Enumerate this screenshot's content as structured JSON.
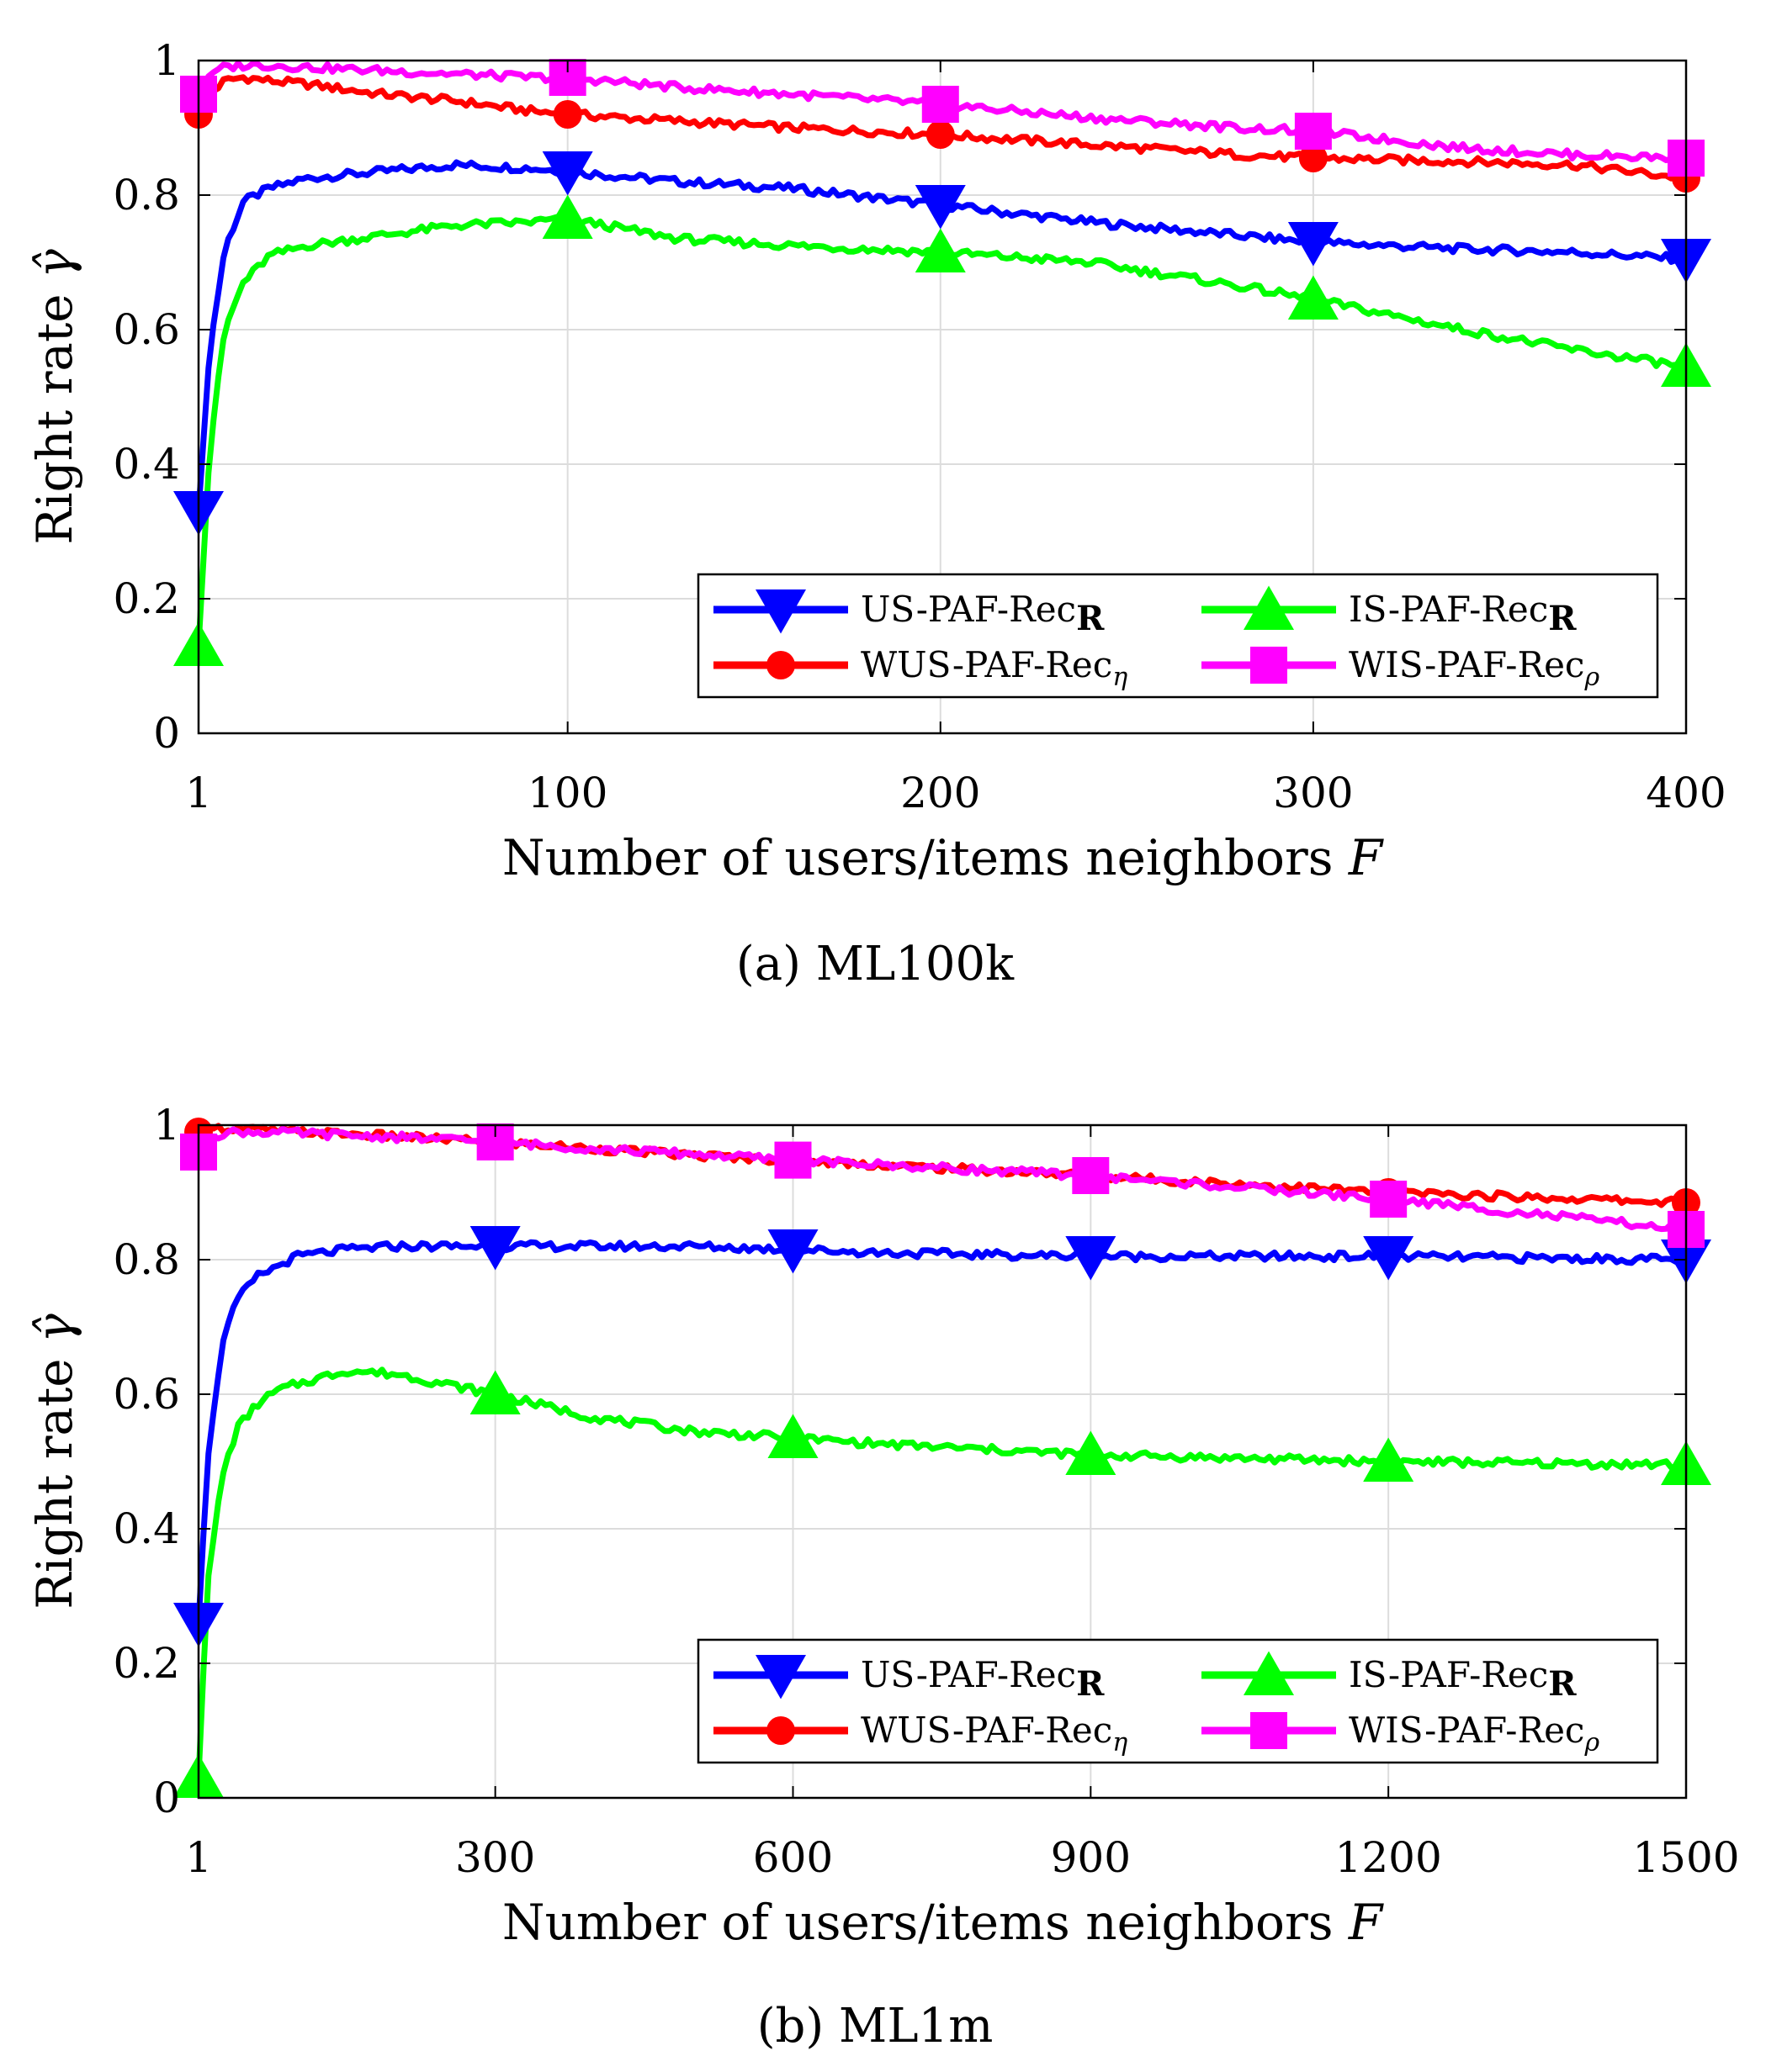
{
  "chart_data": [
    {
      "type": "line",
      "caption": "(a)  ML100k",
      "xlabel": "Number of users/items neighbors",
      "xlabel_var": "F",
      "ylabel": "Right rate",
      "ylabel_var": "γ̂",
      "xlim": [
        1,
        400
      ],
      "ylim": [
        0,
        1
      ],
      "xticks": [
        1,
        100,
        200,
        300,
        400
      ],
      "xtick_labels": [
        "1",
        "100",
        "200",
        "300",
        "400"
      ],
      "yticks": [
        0,
        0.2,
        0.4,
        0.6,
        0.8,
        1
      ],
      "ytick_labels": [
        "0",
        "0.2",
        "0.4",
        "0.6",
        "0.8",
        "1"
      ],
      "grid": true,
      "legend_position": "bottom-right",
      "markers_at": [
        1,
        100,
        200,
        300,
        400
      ],
      "series": [
        {
          "name": "US-PAF-Rec",
          "sub": "R",
          "sub_style": "bold",
          "color": "#0000ff",
          "marker": "triangle-down",
          "x": [
            1,
            4,
            8,
            13,
            20,
            30,
            50,
            70,
            90,
            100,
            130,
            160,
            200,
            240,
            280,
            300,
            340,
            370,
            400
          ],
          "y": [
            0.33,
            0.57,
            0.72,
            0.79,
            0.81,
            0.825,
            0.835,
            0.845,
            0.84,
            0.835,
            0.82,
            0.81,
            0.785,
            0.76,
            0.74,
            0.73,
            0.72,
            0.715,
            0.705
          ]
        },
        {
          "name": "WUS-PAF-Rec",
          "sub": "η",
          "sub_style": "italic",
          "color": "#ff0000",
          "marker": "circle",
          "x": [
            1,
            4,
            8,
            13,
            20,
            30,
            50,
            70,
            90,
            100,
            130,
            160,
            200,
            240,
            280,
            300,
            340,
            370,
            400
          ],
          "y": [
            0.92,
            0.95,
            0.97,
            0.975,
            0.97,
            0.965,
            0.95,
            0.94,
            0.925,
            0.92,
            0.91,
            0.9,
            0.89,
            0.875,
            0.86,
            0.855,
            0.85,
            0.845,
            0.825
          ]
        },
        {
          "name": "IS-PAF-Rec",
          "sub": "R",
          "sub_style": "bold",
          "color": "#00ff00",
          "marker": "triangle-up",
          "x": [
            1,
            4,
            8,
            13,
            20,
            30,
            50,
            70,
            90,
            100,
            130,
            160,
            200,
            240,
            280,
            300,
            340,
            370,
            400
          ],
          "y": [
            0.13,
            0.42,
            0.6,
            0.67,
            0.71,
            0.725,
            0.74,
            0.755,
            0.76,
            0.765,
            0.735,
            0.725,
            0.715,
            0.7,
            0.665,
            0.645,
            0.6,
            0.57,
            0.545
          ]
        },
        {
          "name": "WIS-PAF-Rec",
          "sub": "ρ",
          "sub_style": "italic",
          "color": "#ff00ff",
          "marker": "square",
          "x": [
            1,
            4,
            8,
            13,
            20,
            30,
            50,
            70,
            90,
            100,
            130,
            160,
            200,
            240,
            280,
            300,
            340,
            370,
            400
          ],
          "y": [
            0.95,
            0.98,
            0.99,
            0.993,
            0.993,
            0.99,
            0.985,
            0.98,
            0.975,
            0.975,
            0.96,
            0.95,
            0.935,
            0.915,
            0.9,
            0.895,
            0.87,
            0.86,
            0.855
          ]
        }
      ]
    },
    {
      "type": "line",
      "caption": "(b)  ML1m",
      "xlabel": "Number of users/items neighbors",
      "xlabel_var": "F",
      "ylabel": "Right rate",
      "ylabel_var": "γ̂",
      "xlim": [
        1,
        1500
      ],
      "ylim": [
        0,
        1
      ],
      "xticks": [
        1,
        300,
        600,
        900,
        1200,
        1500
      ],
      "xtick_labels": [
        "1",
        "300",
        "600",
        "900",
        "1200",
        "1500"
      ],
      "yticks": [
        0,
        0.2,
        0.4,
        0.6,
        0.8,
        1
      ],
      "ytick_labels": [
        "0",
        "0.2",
        "0.4",
        "0.6",
        "0.8",
        "1"
      ],
      "grid": true,
      "legend_position": "bottom-right",
      "markers_at": [
        1,
        300,
        600,
        900,
        1200,
        1500
      ],
      "series": [
        {
          "name": "US-PAF-Rec",
          "sub": "R",
          "sub_style": "bold",
          "color": "#0000ff",
          "marker": "triangle-down",
          "x": [
            1,
            10,
            25,
            40,
            60,
            80,
            100,
            150,
            200,
            300,
            400,
            500,
            600,
            700,
            900,
            1200,
            1500
          ],
          "y": [
            0.26,
            0.5,
            0.68,
            0.74,
            0.775,
            0.79,
            0.805,
            0.815,
            0.82,
            0.82,
            0.82,
            0.82,
            0.815,
            0.81,
            0.805,
            0.805,
            0.8
          ]
        },
        {
          "name": "WUS-PAF-Rec",
          "sub": "η",
          "sub_style": "italic",
          "color": "#ff0000",
          "marker": "circle",
          "x": [
            1,
            10,
            25,
            40,
            60,
            100,
            150,
            200,
            300,
            400,
            500,
            600,
            700,
            900,
            1200,
            1500
          ],
          "y": [
            0.99,
            0.995,
            0.995,
            0.995,
            0.993,
            0.99,
            0.987,
            0.983,
            0.975,
            0.965,
            0.955,
            0.948,
            0.94,
            0.925,
            0.9,
            0.885
          ]
        },
        {
          "name": "IS-PAF-Rec",
          "sub": "R",
          "sub_style": "bold",
          "color": "#00ff00",
          "marker": "triangle-up",
          "x": [
            1,
            10,
            25,
            40,
            60,
            80,
            100,
            150,
            200,
            300,
            400,
            500,
            600,
            700,
            900,
            1200,
            1500
          ],
          "y": [
            0.03,
            0.32,
            0.48,
            0.55,
            0.585,
            0.605,
            0.615,
            0.635,
            0.63,
            0.6,
            0.565,
            0.545,
            0.535,
            0.525,
            0.51,
            0.5,
            0.495
          ]
        },
        {
          "name": "WIS-PAF-Rec",
          "sub": "ρ",
          "sub_style": "italic",
          "color": "#ff00ff",
          "marker": "square",
          "x": [
            1,
            10,
            25,
            40,
            60,
            100,
            150,
            200,
            300,
            400,
            500,
            600,
            700,
            900,
            1200,
            1500
          ],
          "y": [
            0.96,
            0.98,
            0.988,
            0.99,
            0.99,
            0.988,
            0.985,
            0.982,
            0.975,
            0.965,
            0.957,
            0.948,
            0.94,
            0.925,
            0.89,
            0.845
          ]
        }
      ]
    }
  ]
}
